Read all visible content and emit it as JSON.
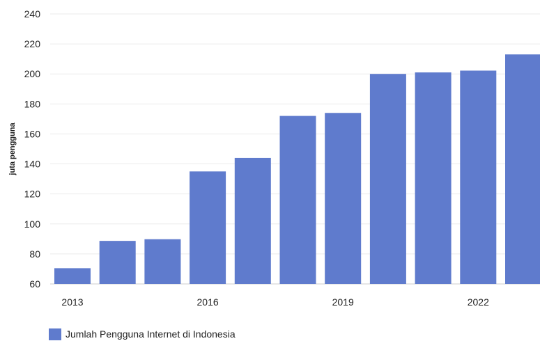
{
  "chart_data": {
    "type": "bar",
    "categories": [
      "2013",
      "2014",
      "2015",
      "2016",
      "2017",
      "2018",
      "2019",
      "2020",
      "2021",
      "2022",
      "2023"
    ],
    "x_tick_labels": [
      "2013",
      "2016",
      "2019",
      "2022"
    ],
    "series": [
      {
        "name": "Jumlah Pengguna Internet di Indonesia",
        "color": "#5f7bcd",
        "values": [
          70.5,
          88.7,
          89.8,
          135.0,
          144.0,
          172.0,
          174.0,
          200.0,
          201.0,
          202.2,
          213.0
        ]
      }
    ],
    "title": "",
    "xlabel": "",
    "ylabel": "juta pengguna",
    "ylim": [
      60,
      240
    ],
    "yticks": [
      60,
      80,
      100,
      120,
      140,
      160,
      180,
      200,
      220,
      240
    ],
    "grid": true,
    "legend_position": "bottom-left"
  }
}
